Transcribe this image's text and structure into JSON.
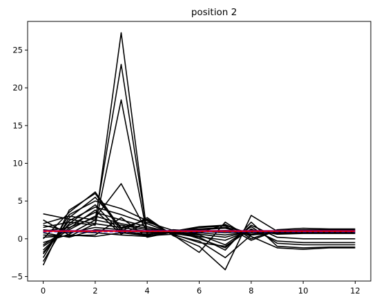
{
  "chart_data": {
    "type": "line",
    "title": "position 2",
    "xlabel": "",
    "ylabel": "",
    "xlim": [
      -0.6,
      12.6
    ],
    "ylim": [
      -5.6,
      28.8
    ],
    "xticks": [
      0,
      2,
      4,
      6,
      8,
      10,
      12
    ],
    "yticks": [
      -5,
      0,
      5,
      10,
      15,
      20,
      25
    ],
    "grid": false,
    "legend": "none",
    "x": [
      0,
      1,
      2,
      3,
      4,
      5,
      6,
      7,
      8,
      9,
      10,
      11,
      12
    ],
    "series_color": "#000000",
    "series": [
      {
        "values": [
          3.3,
          2.6,
          2.0,
          27.3,
          0.6,
          1.0,
          1.1,
          1.0,
          0.9,
          1.0,
          1.0,
          1.0,
          1.0
        ]
      },
      {
        "values": [
          2.0,
          3.0,
          2.5,
          23.1,
          0.8,
          1.0,
          1.0,
          1.1,
          1.0,
          1.0,
          1.0,
          1.0,
          1.0
        ]
      },
      {
        "values": [
          1.5,
          2.2,
          1.8,
          18.4,
          0.5,
          1.0,
          0.9,
          1.0,
          1.0,
          1.0,
          1.0,
          1.0,
          1.0
        ]
      },
      {
        "values": [
          1.0,
          1.5,
          2.8,
          7.3,
          0.9,
          1.0,
          1.0,
          1.0,
          1.0,
          1.0,
          1.0,
          1.0,
          1.0
        ]
      },
      {
        "values": [
          0.0,
          3.5,
          6.2,
          1.3,
          2.6,
          0.5,
          -0.3,
          -2.5,
          0.5,
          0.9,
          1.0,
          1.0,
          1.0
        ]
      },
      {
        "values": [
          -3.5,
          3.8,
          6.0,
          1.0,
          2.8,
          0.4,
          -1.0,
          -4.1,
          3.1,
          1.0,
          1.1,
          1.1,
          1.1
        ]
      },
      {
        "values": [
          -3.0,
          2.8,
          5.5,
          1.5,
          2.5,
          0.5,
          -1.8,
          2.2,
          0.0,
          1.2,
          1.4,
          1.3,
          1.3
        ]
      },
      {
        "values": [
          -2.5,
          3.2,
          5.0,
          4.0,
          2.4,
          0.6,
          0.8,
          1.9,
          0.3,
          -1.2,
          -1.4,
          -1.2,
          -1.2
        ]
      },
      {
        "values": [
          -2.0,
          2.4,
          4.2,
          3.2,
          2.0,
          0.7,
          0.2,
          -1.5,
          2.2,
          -1.0,
          -1.2,
          -1.1,
          -1.1
        ]
      },
      {
        "values": [
          -1.5,
          1.8,
          3.5,
          2.5,
          1.6,
          0.8,
          1.5,
          1.7,
          -0.2,
          1.1,
          1.2,
          1.2,
          1.2
        ]
      },
      {
        "values": [
          -1.0,
          1.2,
          3.0,
          2.0,
          1.4,
          0.8,
          0.5,
          -0.8,
          1.6,
          -0.6,
          -0.8,
          -0.8,
          -0.8
        ]
      },
      {
        "values": [
          -0.5,
          0.6,
          2.5,
          1.8,
          1.2,
          0.9,
          1.2,
          1.4,
          0.5,
          0.8,
          0.9,
          0.9,
          0.9
        ]
      },
      {
        "values": [
          0.5,
          0.3,
          2.0,
          1.5,
          1.0,
          0.9,
          0.3,
          -0.2,
          1.2,
          0.6,
          0.7,
          0.7,
          0.7
        ]
      },
      {
        "values": [
          1.2,
          0.8,
          1.5,
          1.2,
          0.8,
          1.0,
          1.3,
          1.5,
          0.8,
          1.0,
          1.0,
          1.0,
          1.0
        ]
      },
      {
        "values": [
          0.8,
          0.2,
          1.2,
          1.0,
          0.6,
          1.0,
          0.8,
          0.5,
          1.0,
          0.9,
          0.9,
          0.9,
          0.9
        ]
      },
      {
        "values": [
          -1.8,
          2.0,
          4.5,
          0.8,
          0.4,
          0.6,
          -0.5,
          -1.0,
          1.3,
          -0.3,
          -0.5,
          -0.5,
          -0.5
        ]
      },
      {
        "values": [
          1.8,
          1.0,
          0.8,
          0.5,
          0.3,
          1.0,
          1.6,
          1.8,
          0.6,
          1.1,
          1.0,
          1.0,
          1.0
        ]
      },
      {
        "values": [
          0.2,
          0.4,
          0.5,
          2.8,
          0.2,
          0.9,
          0.6,
          0.2,
          1.1,
          0.7,
          0.8,
          0.8,
          0.8
        ]
      },
      {
        "values": [
          -0.8,
          1.4,
          3.8,
          0.6,
          2.2,
          1.1,
          0.0,
          -1.2,
          1.8,
          0.2,
          0.0,
          0.0,
          0.0
        ]
      },
      {
        "values": [
          2.5,
          0.5,
          0.3,
          0.8,
          0.5,
          1.2,
          1.0,
          0.8,
          1.0,
          1.0,
          1.0,
          1.0,
          1.0
        ]
      }
    ],
    "mean_line": {
      "color": "#ff0000",
      "values": [
        1.0,
        1.0,
        1.0,
        1.0,
        1.0,
        1.0,
        1.0,
        1.0,
        1.0,
        1.0,
        1.0,
        1.0,
        1.0
      ]
    },
    "median_line": {
      "color": "#0000ff",
      "values": [
        0.95,
        0.95,
        0.95,
        0.95,
        1.0,
        1.0,
        0.95,
        0.95,
        0.95,
        0.95,
        0.95,
        0.95,
        0.95
      ]
    },
    "band_line": {
      "color": "#800080",
      "values": [
        1.05,
        1.05,
        1.05,
        1.05,
        1.05,
        1.05,
        1.05,
        1.05,
        1.05,
        1.05,
        1.05,
        1.05,
        1.05
      ]
    }
  }
}
